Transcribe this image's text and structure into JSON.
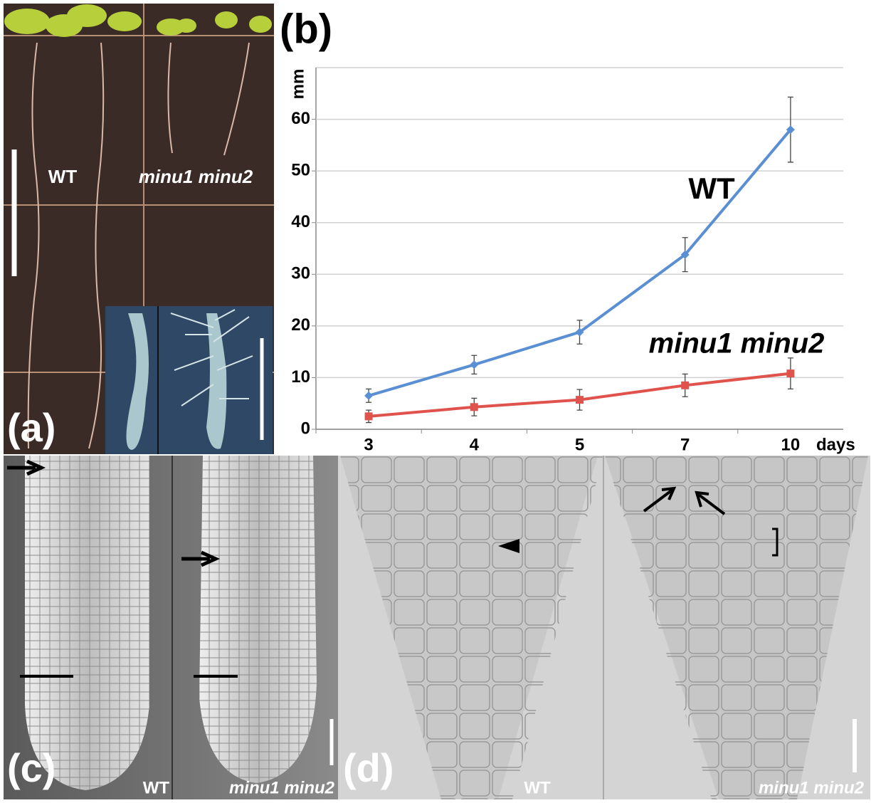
{
  "chart_data": {
    "type": "line",
    "categories": [
      "3",
      "4",
      "5",
      "7",
      "10"
    ],
    "x_label": "days",
    "y_label": "mm",
    "ylim": [
      0,
      70
    ],
    "yticks": [
      0,
      10,
      20,
      30,
      40,
      50,
      60
    ],
    "grid": true,
    "series": [
      {
        "name": "WT",
        "color": "#5b8fd3",
        "marker": "diamond",
        "values": [
          6.5,
          12.5,
          18.8,
          33.8,
          58
        ],
        "errors": [
          1.3,
          1.8,
          2.3,
          3.3,
          6.3
        ]
      },
      {
        "name": "minu1 minu2",
        "color": "#e0534d",
        "marker": "square",
        "values": [
          2.5,
          4.3,
          5.7,
          8.5,
          10.8
        ],
        "errors": [
          1.2,
          1.7,
          2,
          2.2,
          3
        ]
      }
    ]
  },
  "panels": [
    {
      "label": "(a)",
      "captions": [
        "WT",
        "minu1 minu2"
      ]
    },
    {
      "label": "(b)"
    },
    {
      "label": "(c)",
      "captions": [
        "WT",
        "minu1 minu2"
      ]
    },
    {
      "label": "(d)",
      "captions": [
        "WT",
        "minu1 minu2"
      ]
    }
  ]
}
